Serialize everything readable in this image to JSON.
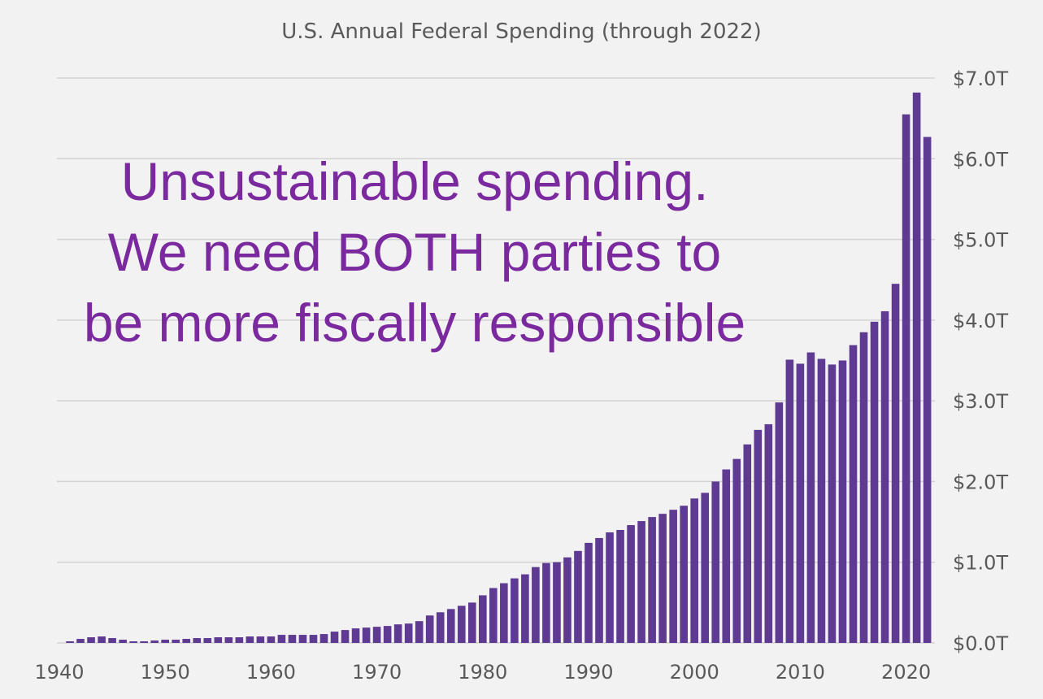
{
  "overlay": {
    "line1": "Unsustainable spending.",
    "line2": "We need BOTH parties to",
    "line3": "be more fiscally responsible"
  },
  "colors": {
    "bar": "#5f3a92",
    "overlay_text": "#7a2a9e",
    "grid": "#d3d3d3",
    "axis_text": "#595959",
    "background": "#f2f2f2"
  },
  "chart_data": {
    "type": "bar",
    "title": "U.S. Annual Federal Spending (through 2022)",
    "xlabel": "",
    "ylabel": "",
    "y_unit": "trillion USD",
    "ylim": [
      0,
      7.0
    ],
    "grid": true,
    "y_axis_position": "right",
    "y_ticks": [
      0,
      1,
      2,
      3,
      4,
      5,
      6,
      7
    ],
    "y_tick_labels": [
      "$0.0T",
      "$1.0T",
      "$2.0T",
      "$3.0T",
      "$4.0T",
      "$5.0T",
      "$6.0T",
      "$7.0T"
    ],
    "x_tick_labels": [
      "1940",
      "1950",
      "1960",
      "1970",
      "1980",
      "1990",
      "2000",
      "2010",
      "2020"
    ],
    "categories": [
      1941,
      1942,
      1943,
      1944,
      1945,
      1946,
      1947,
      1948,
      1949,
      1950,
      1951,
      1952,
      1953,
      1954,
      1955,
      1956,
      1957,
      1958,
      1959,
      1960,
      1961,
      1962,
      1963,
      1964,
      1965,
      1966,
      1967,
      1968,
      1969,
      1970,
      1971,
      1972,
      1973,
      1974,
      1975,
      1976,
      1977,
      1978,
      1979,
      1980,
      1981,
      1982,
      1983,
      1984,
      1985,
      1986,
      1987,
      1988,
      1989,
      1990,
      1991,
      1992,
      1993,
      1994,
      1995,
      1996,
      1997,
      1998,
      1999,
      2000,
      2001,
      2002,
      2003,
      2004,
      2005,
      2006,
      2007,
      2008,
      2009,
      2010,
      2011,
      2012,
      2013,
      2014,
      2015,
      2016,
      2017,
      2018,
      2019,
      2020,
      2021,
      2022
    ],
    "values": [
      0.02,
      0.05,
      0.07,
      0.08,
      0.06,
      0.04,
      0.02,
      0.02,
      0.03,
      0.04,
      0.04,
      0.05,
      0.06,
      0.06,
      0.07,
      0.07,
      0.07,
      0.08,
      0.08,
      0.08,
      0.1,
      0.1,
      0.1,
      0.1,
      0.11,
      0.14,
      0.16,
      0.18,
      0.19,
      0.2,
      0.21,
      0.23,
      0.24,
      0.27,
      0.34,
      0.38,
      0.42,
      0.46,
      0.5,
      0.59,
      0.68,
      0.74,
      0.8,
      0.85,
      0.94,
      0.99,
      1.0,
      1.06,
      1.14,
      1.24,
      1.3,
      1.37,
      1.4,
      1.46,
      1.51,
      1.56,
      1.6,
      1.65,
      1.7,
      1.79,
      1.86,
      2.0,
      2.15,
      2.28,
      2.46,
      2.64,
      2.71,
      2.98,
      3.51,
      3.46,
      3.6,
      3.52,
      3.45,
      3.5,
      3.69,
      3.85,
      3.98,
      4.11,
      4.45,
      6.55,
      6.82,
      6.27
    ]
  }
}
